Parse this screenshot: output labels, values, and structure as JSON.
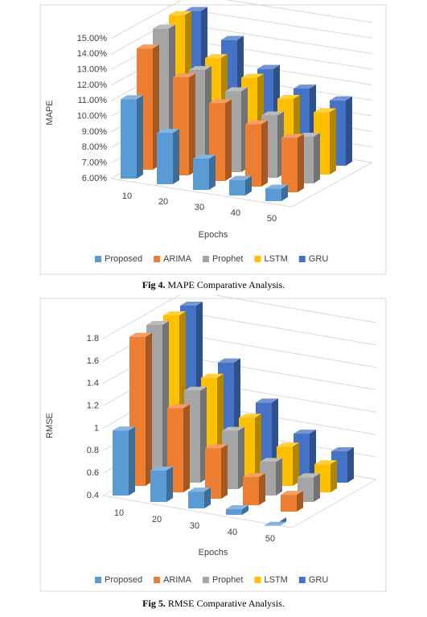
{
  "chart_data": [
    {
      "type": "bar",
      "caption_label": "Fig 4.",
      "caption": "MAPE Comparative Analysis.",
      "x_label": "Epochs",
      "y_label": "MAPE",
      "categories": [
        "10",
        "20",
        "30",
        "40",
        "50"
      ],
      "ylim": [
        6,
        15
      ],
      "yticks": [
        {
          "value": 6,
          "label": "6.00%"
        },
        {
          "value": 7,
          "label": "7.00%"
        },
        {
          "value": 8,
          "label": "8.00%"
        },
        {
          "value": 9,
          "label": "9.00%"
        },
        {
          "value": 10,
          "label": "10.00%"
        },
        {
          "value": 11,
          "label": "11.00%"
        },
        {
          "value": 12,
          "label": "12.00%"
        },
        {
          "value": 13,
          "label": "13.00%"
        },
        {
          "value": 14,
          "label": "14.00%"
        },
        {
          "value": 15,
          "label": "15.00%"
        }
      ],
      "grid": true,
      "series": [
        {
          "name": "Proposed",
          "color": "#5b9bd5",
          "values": [
            11.1,
            9.3,
            8.0,
            7.0,
            6.8
          ]
        },
        {
          "name": "ARIMA",
          "color": "#ed7d31",
          "values": [
            13.8,
            12.3,
            11.0,
            10.0,
            9.5
          ]
        },
        {
          "name": "Prophet",
          "color": "#a5a5a5",
          "values": [
            14.5,
            12.2,
            11.2,
            10.0,
            9.0
          ]
        },
        {
          "name": "LSTM",
          "color": "#ffc000",
          "values": [
            14.8,
            12.4,
            11.5,
            10.5,
            10.0
          ]
        },
        {
          "name": "GRU",
          "color": "#4472c4",
          "values": [
            14.5,
            13.0,
            11.5,
            10.6,
            10.2
          ]
        }
      ]
    },
    {
      "type": "bar",
      "caption_label": "Fig 5.",
      "caption": "RMSE Comparative Analysis.",
      "x_label": "Epochs",
      "y_label": "RMSE",
      "categories": [
        "10",
        "20",
        "30",
        "40",
        "50"
      ],
      "ylim": [
        0.4,
        1.8
      ],
      "yticks": [
        0.4,
        0.6,
        0.8,
        1,
        1.2,
        1.4,
        1.6,
        1.8
      ],
      "grid": true,
      "series": [
        {
          "name": "Proposed",
          "color": "#5b9bd5",
          "values": [
            0.98,
            0.68,
            0.55,
            0.45,
            0.36
          ]
        },
        {
          "name": "ARIMA",
          "color": "#ed7d31",
          "values": [
            1.73,
            1.15,
            0.85,
            0.65,
            0.55
          ]
        },
        {
          "name": "Prophet",
          "color": "#a5a5a5",
          "values": [
            1.75,
            1.22,
            0.92,
            0.7,
            0.62
          ]
        },
        {
          "name": "LSTM",
          "color": "#ffc000",
          "values": [
            1.75,
            1.25,
            0.95,
            0.75,
            0.65
          ]
        },
        {
          "name": "GRU",
          "color": "#4472c4",
          "values": [
            1.75,
            1.3,
            1.0,
            0.78,
            0.68
          ]
        }
      ]
    }
  ]
}
